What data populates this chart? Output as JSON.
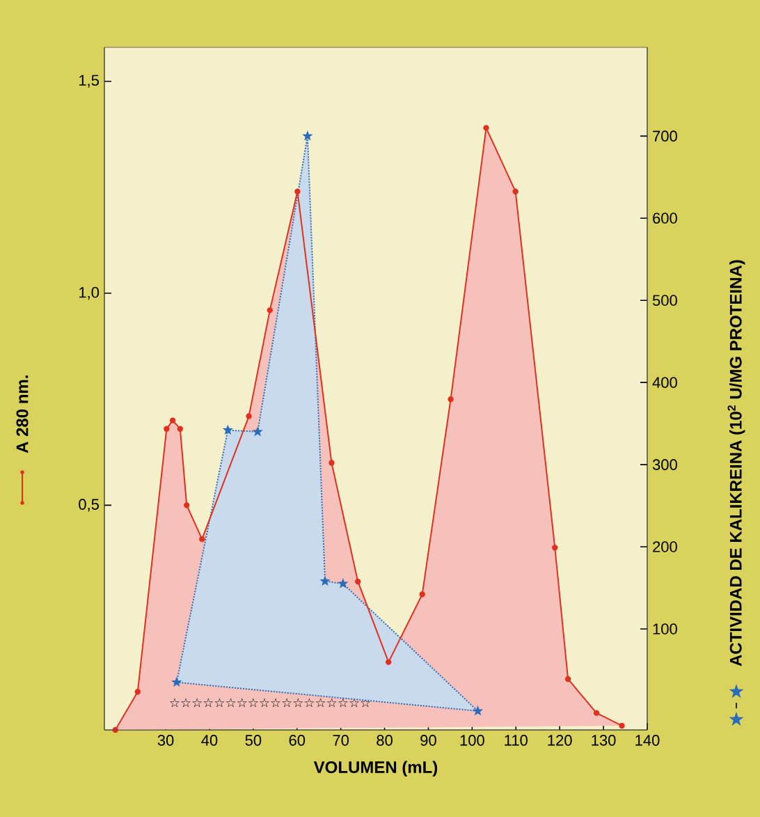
{
  "chart_data": {
    "type": "area",
    "xlabel": "VOLUMEN (mL)",
    "ylabel": "A 280 nm.",
    "y2label": "ACTIVIDAD DE KALIKREINA (10$^{2}$ U/MG PROTEINA)",
    "annotations": [
      "☆☆☆☆☆☆☆☆☆☆☆☆☆☆☆☆☆☆"
    ],
    "xlim": [
      16,
      140
    ],
    "xticks": [
      30,
      40,
      50,
      60,
      70,
      80,
      90,
      100,
      110,
      120,
      130,
      140
    ],
    "ylim": [
      -0.03,
      1.58
    ],
    "yticks": [
      {
        "value": 0.5,
        "label": "0,5"
      },
      {
        "value": 1.0,
        "label": "1,0"
      },
      {
        "value": 1.5,
        "label": "1,5"
      }
    ],
    "y2lim": [
      -23,
      808
    ],
    "y2ticks": [
      100,
      200,
      300,
      400,
      500,
      600,
      700
    ],
    "grid": false,
    "series": [
      {
        "axis": "y",
        "color": "#e0301e",
        "marker": "circle",
        "line_style": "solid",
        "x": [
          18.5,
          23.6,
          30.2,
          31.6,
          33.3,
          34.8,
          38.3,
          49.0,
          53.8,
          60.1,
          67.9,
          73.9,
          80.9,
          88.6,
          95.1,
          103.2,
          109.9,
          118.9,
          121.9,
          128.4,
          134.2
        ],
        "values": [
          -0.03,
          0.06,
          0.68,
          0.7,
          0.68,
          0.5,
          0.42,
          0.71,
          0.96,
          1.24,
          0.6,
          0.32,
          0.13,
          0.29,
          0.75,
          1.39,
          1.24,
          0.4,
          0.09,
          0.01,
          -0.02
        ]
      },
      {
        "axis": "y2",
        "color": "#2b6cb8",
        "marker": "star",
        "line_style": "dotted",
        "x": [
          32.5,
          44.2,
          51.0,
          62.4,
          66.4,
          70.5,
          101.3
        ],
        "values": [
          35,
          342,
          340,
          700,
          158,
          155,
          0
        ]
      }
    ]
  }
}
